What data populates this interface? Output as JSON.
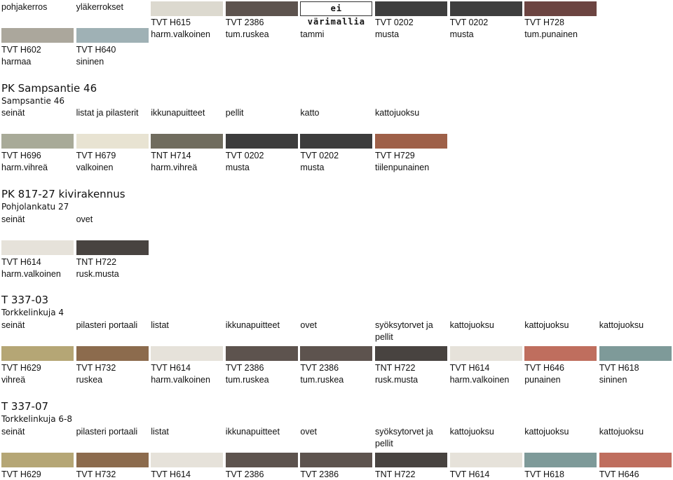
{
  "top": {
    "row1_labels": [
      "pohjakerros",
      "yläkerrokset"
    ],
    "swatches_right": [
      {
        "color": "#dcd9cf"
      },
      {
        "color": "#5d534e"
      },
      {
        "label": "ei värimallia"
      },
      {
        "color": "#3e3e3e"
      },
      {
        "color": "#3e3e3e"
      },
      {
        "color": "#6c4441"
      }
    ],
    "codes_right": [
      "TVT H615",
      "TVT 2386",
      "",
      "TVT 0202",
      "TVT 0202",
      "TVT H728"
    ],
    "names_right": [
      "harm.valkoinen",
      "tum.ruskea",
      "tammi",
      "musta",
      "musta",
      "tum.punainen"
    ],
    "swatches_left": [
      {
        "color": "#aba79c"
      },
      {
        "color": "#9fb1b5"
      }
    ],
    "codes_left": [
      "TVT H602",
      "TVT H640"
    ],
    "names_left": [
      "harmaa",
      "sininen"
    ]
  },
  "sections": [
    {
      "title": "PK Sampsantie 46",
      "address": "Sampsantie 46",
      "parts": [
        "seinät",
        "listat ja pilasterit",
        "ikkunapuitteet",
        "pellit",
        "katto",
        "kattojuoksu"
      ],
      "colors": [
        "#a8aa98",
        "#e8e3d2",
        "#706c5e",
        "#3c3c3c",
        "#3c3c3c",
        "#9e6048"
      ],
      "codes": [
        "TVT H696",
        "TVT H679",
        "TNT H714",
        "TVT 0202",
        "TVT 0202",
        "TVT H729"
      ],
      "names": [
        "harm.vihreä",
        "valkoinen",
        "harm.vihreä",
        "musta",
        "musta",
        "tiilenpunainen"
      ]
    },
    {
      "title": "PK 817-27 kivirakennus",
      "address": "Pohjolankatu 27",
      "parts": [
        "seinät",
        "ovet"
      ],
      "colors": [
        "#e6e2da",
        "#484340"
      ],
      "codes": [
        "TVT H614",
        "TNT H722"
      ],
      "names": [
        "harm.valkoinen",
        "rusk.musta"
      ]
    },
    {
      "title": "T 337-03",
      "address": "Torkkelinkuja 4",
      "parts": [
        "seinät",
        "pilasteri portaali",
        "listat",
        "ikkunapuitteet",
        "ovet",
        "syöksytorvet ja",
        "kattojuoksu",
        "kattojuoksu",
        "kattojuoksu"
      ],
      "parts_line2": [
        "",
        "",
        "",
        "",
        "",
        "pellit",
        "",
        "",
        ""
      ],
      "colors": [
        "#b5a675",
        "#8c6b4d",
        "#e6e2da",
        "#5d534e",
        "#5d534e",
        "#484340",
        "#e6e2da",
        "#bf6e5e",
        "#7e9a99"
      ],
      "codes": [
        "TVT H629",
        "TVT H732",
        "TVT H614",
        "TVT 2386",
        "TVT 2386",
        "TNT H722",
        "TVT H614",
        "TVT H646",
        "TVT H618"
      ],
      "names": [
        "vihreä",
        "ruskea",
        "harm.valkoinen",
        "tum.ruskea",
        "tum.ruskea",
        "rusk.musta",
        "harm.valkoinen",
        "punainen",
        "sininen"
      ]
    },
    {
      "title": "T 337-07",
      "address": "Torkkelinkuja 6-8",
      "parts": [
        "seinät",
        "pilasteri portaali",
        "listat",
        "ikkunapuitteet",
        "ovet",
        "syöksytorvet ja",
        "kattojuoksu",
        "kattojuoksu",
        "kattojuoksu"
      ],
      "parts_line2": [
        "",
        "",
        "",
        "",
        "",
        "pellit",
        "",
        "",
        ""
      ],
      "colors": [
        "#b5a675",
        "#8c6b4d",
        "#e6e2da",
        "#5d534e",
        "#5d534e",
        "#484340",
        "#e6e2da",
        "#7e9a99",
        "#bf6e5e"
      ],
      "codes": [
        "TVT H629",
        "TVT H732",
        "TVT H614",
        "TVT 2386",
        "TVT 2386",
        "TNT H722",
        "TVT H614",
        "TVT H618",
        "TVT H646"
      ]
    }
  ]
}
